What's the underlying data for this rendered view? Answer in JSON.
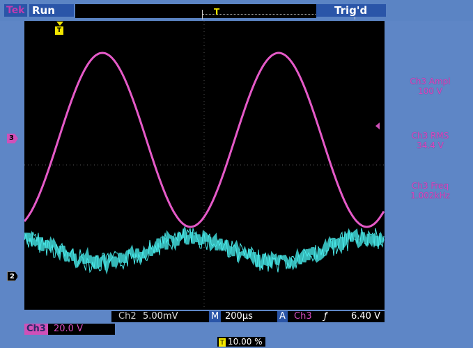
{
  "header": {
    "brand": "Tek",
    "acquisition_status": "Run",
    "trigger_status": "Trig'd",
    "trigger_icon": "T"
  },
  "markers": {
    "trigger_position_icon": "T",
    "ch3_marker": "3",
    "ch2_marker": "2"
  },
  "measurements": [
    {
      "label": "Ch3 Ampl",
      "value": "100 V"
    },
    {
      "label": "Ch3 RMS",
      "value": "34.4 V"
    },
    {
      "label": "Ch3 Freq",
      "value": "1.002kHz"
    }
  ],
  "status_bar": {
    "ch2_label": "Ch2",
    "ch2_scale": "5.00mV",
    "timebase_label": "M",
    "timebase": "200μs",
    "trigger_label": "A",
    "trigger_source": "Ch3",
    "trigger_slope": "ƒ",
    "trigger_level": "6.40 V"
  },
  "ch3_scale": {
    "label": "Ch3",
    "value": "20.0 V"
  },
  "trigger_position": {
    "icon": "T",
    "value": "10.00 %"
  },
  "colors": {
    "ch3_trace": "#e55ac8",
    "ch2_trace": "#3fd8d8",
    "screen_bg": "#000000",
    "frame_bg": "#5e86c6",
    "trigger_marker": "#f2e600"
  }
}
